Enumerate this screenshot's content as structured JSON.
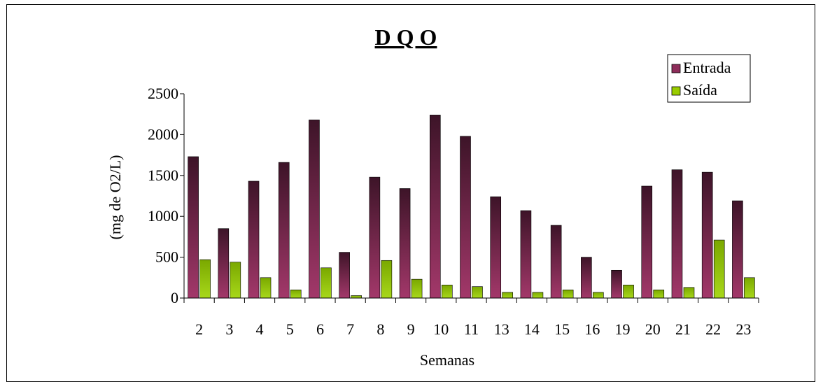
{
  "chart_data": {
    "type": "bar",
    "title": "D Q O",
    "xlabel": "Semanas",
    "ylabel": "(mg de O2/L)",
    "ylim": [
      0,
      2500
    ],
    "yticks": [
      0,
      500,
      1000,
      1500,
      2000,
      2500
    ],
    "legend_position": "top-right",
    "categories": [
      "2",
      "3",
      "4",
      "5",
      "6",
      "7",
      "8",
      "9",
      "10",
      "11",
      "13",
      "14",
      "15",
      "16",
      "19",
      "20",
      "21",
      "22",
      "23"
    ],
    "series": [
      {
        "name": "Entrada",
        "color": "#8e2d5a",
        "values": [
          1730,
          850,
          1430,
          1660,
          2180,
          560,
          1480,
          1340,
          2240,
          1980,
          1240,
          1070,
          890,
          500,
          340,
          1370,
          1570,
          1540,
          1190
        ]
      },
      {
        "name": "Saída",
        "color": "#99cc00",
        "values": [
          470,
          440,
          250,
          100,
          370,
          30,
          460,
          230,
          160,
          140,
          70,
          70,
          100,
          70,
          160,
          100,
          130,
          710,
          250
        ]
      }
    ]
  }
}
